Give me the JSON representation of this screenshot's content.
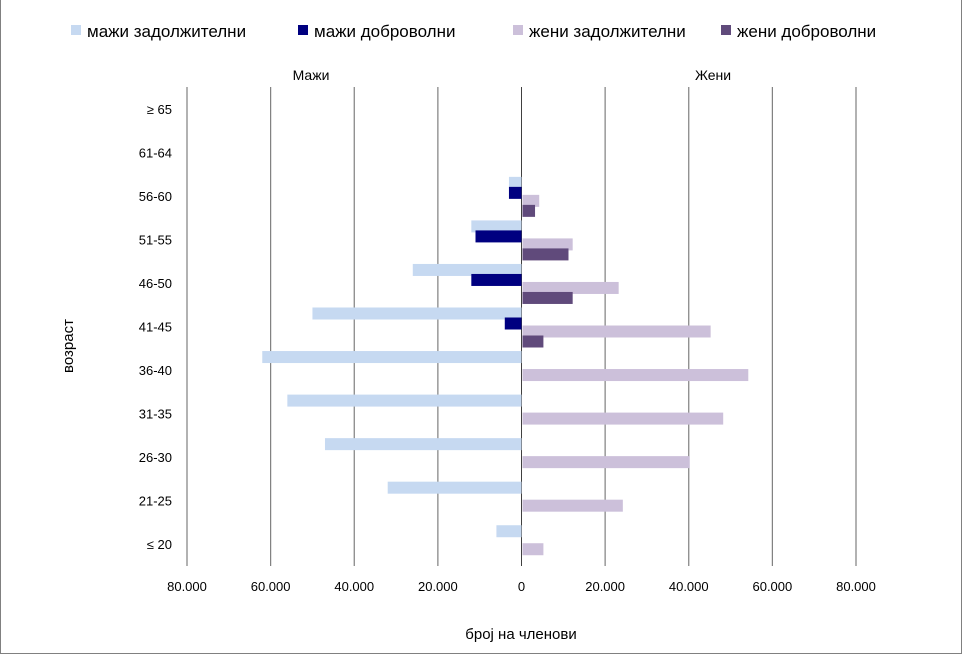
{
  "chart_data": {
    "type": "bar",
    "orientation": "horizontal",
    "xlabel": "број на членови",
    "ylabel": "возраст",
    "side_labels": {
      "left": "Мажи",
      "right": "Жени"
    },
    "xlim": [
      -80000,
      80000
    ],
    "x_tick_labels": [
      "80.000",
      "60.000",
      "40.000",
      "20.000",
      "0",
      "20.000",
      "40.000",
      "60.000",
      "80.000"
    ],
    "grid": true,
    "legend_position": "top",
    "categories": [
      "≥ 65",
      "61-64",
      "56-60",
      "51-55",
      "46-50",
      "41-45",
      "36-40",
      "31-35",
      "26-30",
      "21-25",
      "≤ 20"
    ],
    "series": [
      {
        "name": "мажи задолжителни",
        "side": "left",
        "color": "#c6d9f1",
        "values": [
          0,
          0,
          3000,
          12000,
          26000,
          50000,
          62000,
          56000,
          47000,
          32000,
          6000
        ]
      },
      {
        "name": "мажи доброволни",
        "side": "left",
        "color": "#000080",
        "values": [
          0,
          0,
          3000,
          11000,
          12000,
          4000,
          0,
          0,
          0,
          0,
          0
        ]
      },
      {
        "name": "жени задолжителни",
        "side": "right",
        "color": "#ccc0da",
        "values": [
          0,
          0,
          4000,
          12000,
          23000,
          45000,
          54000,
          48000,
          40000,
          24000,
          5000
        ]
      },
      {
        "name": "жени доброволни",
        "side": "right",
        "color": "#604a7b",
        "values": [
          0,
          0,
          3000,
          11000,
          12000,
          5000,
          0,
          0,
          0,
          0,
          0
        ]
      }
    ]
  }
}
